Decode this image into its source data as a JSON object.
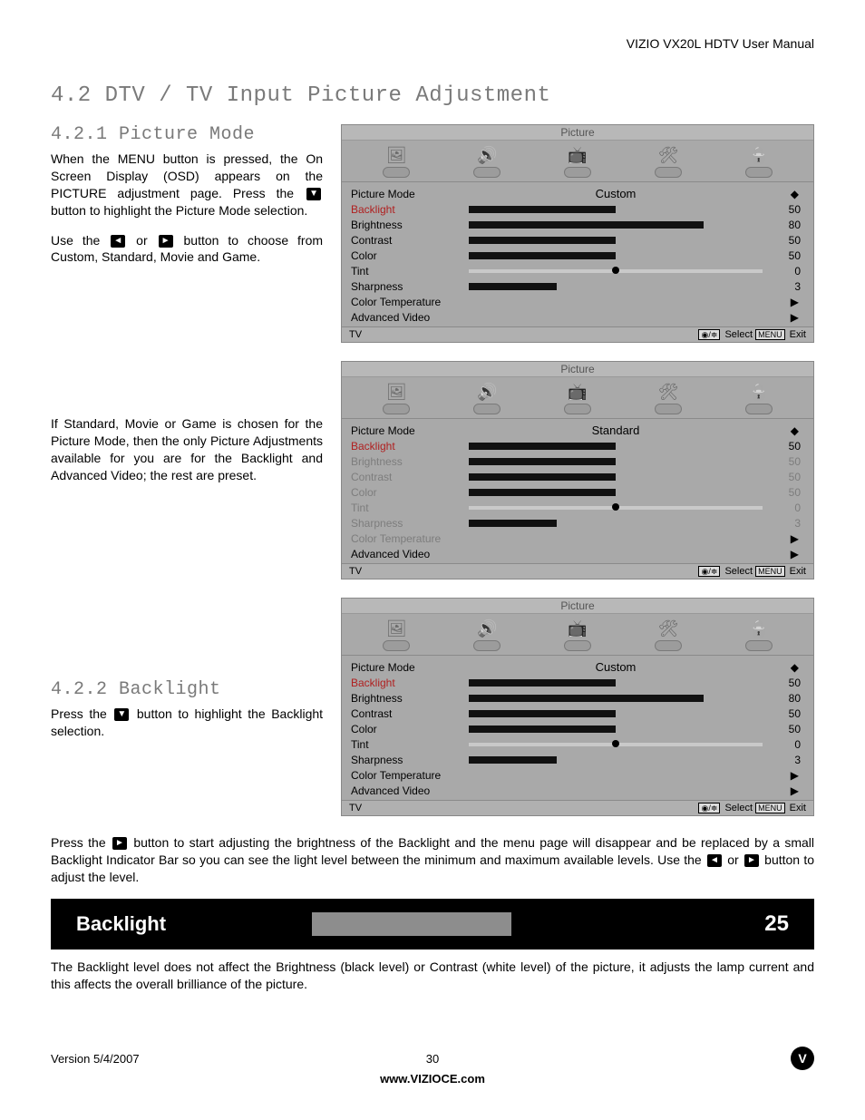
{
  "header": {
    "doc_title": "VIZIO VX20L HDTV User Manual"
  },
  "section": {
    "h1": "4.2 DTV / TV Input Picture Adjustment",
    "h2_1": "4.2.1 Picture Mode",
    "h2_2": "4.2.2 Backlight"
  },
  "text": {
    "p1a": "When the MENU button is pressed, the On Screen Display (OSD) appears on the PICTURE adjustment page.  Press the",
    "p1b": "button to highlight the Picture Mode selection.",
    "p2a": "Use the",
    "p2b": "or",
    "p2c": "button to choose from Custom, Standard, Movie and Game.",
    "p3": "If Standard, Movie or Game is chosen for the Picture Mode, then the only Picture Adjustments available for you are for the Backlight and Advanced Video; the rest are preset.",
    "p4a": "Press the",
    "p4b": "button to highlight the Backlight selection.",
    "p5a": "Press the",
    "p5b": "button to start adjusting the brightness of the Backlight and the menu page will disappear and be replaced by a small Backlight Indicator Bar so you can see the light level between the minimum and maximum available levels.  Use the",
    "p5c": "or",
    "p5d": "button to adjust the level.",
    "p6": "The Backlight level does not affect the Brightness (black level) or Contrast (white level) of the picture, it adjusts the lamp current and this affects the overall brilliance of the picture."
  },
  "glyphs": {
    "down": "▼",
    "left": "◄",
    "right": "►"
  },
  "osd_common": {
    "title": "Picture",
    "labels": {
      "mode": "Picture Mode",
      "backlight": "Backlight",
      "brightness": "Brightness",
      "contrast": "Contrast",
      "color": "Color",
      "tint": "Tint",
      "sharpness": "Sharpness",
      "colortemp": "Color Temperature",
      "advvideo": "Advanced Video"
    },
    "foot_source": "TV",
    "foot_select": "Select",
    "foot_exit": "Exit",
    "foot_key1": "◉/≑",
    "foot_key2": "MENU"
  },
  "osd1": {
    "mode": "Custom",
    "backlight": 50,
    "brightness": 80,
    "contrast": 50,
    "color": 50,
    "tint": 0,
    "sharpness": 3,
    "dimmed": false
  },
  "osd2": {
    "mode": "Standard",
    "backlight": 50,
    "brightness": 50,
    "contrast": 50,
    "color": 50,
    "tint": 0,
    "sharpness": 3,
    "dimmed": true
  },
  "osd3": {
    "mode": "Custom",
    "backlight": 50,
    "brightness": 80,
    "contrast": 50,
    "color": 50,
    "tint": 0,
    "sharpness": 3,
    "dimmed": false
  },
  "backlight_bar": {
    "label": "Backlight",
    "value": 25
  },
  "footer": {
    "version": "Version 5/4/2007",
    "page": "30",
    "url": "www.VIZIOCE.com",
    "logo": "V"
  },
  "style": {
    "colors": {
      "page_bg": "#ffffff",
      "heading_grey": "#7a7a7a",
      "osd_bg": "#a9a9a9",
      "osd_bar_fill": "#111111",
      "osd_sel_text": "#b02020",
      "osd_dim_text": "#7d7d7d",
      "black": "#000000",
      "backlight_track": "#8d8d8d"
    },
    "bar_scale_max": 100,
    "sharpness_scale_max": 10
  }
}
